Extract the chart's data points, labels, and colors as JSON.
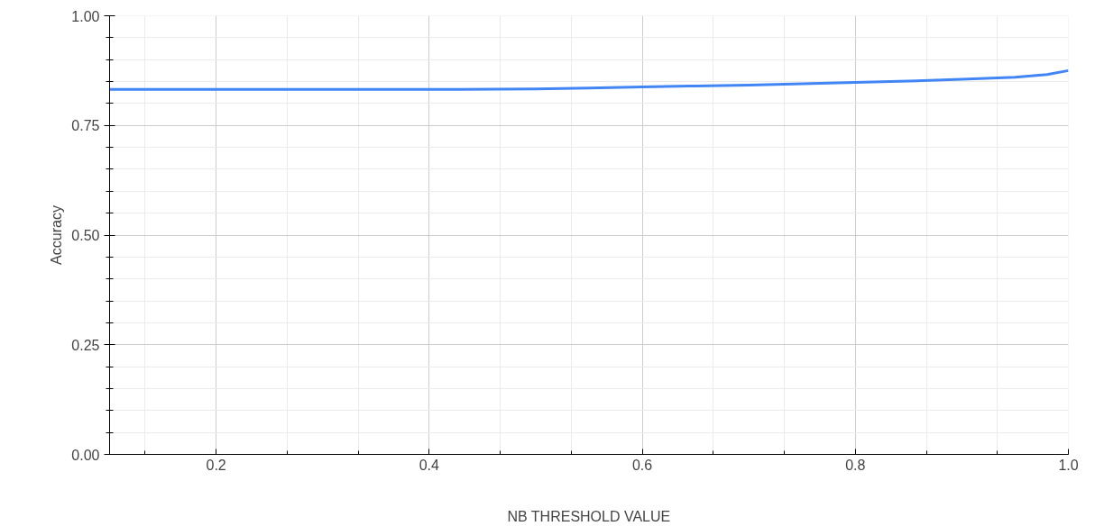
{
  "chart_data": {
    "type": "line",
    "xlabel": "NB THRESHOLD VALUE",
    "ylabel": "Accuracy",
    "x": [
      0.1,
      0.2,
      0.3,
      0.4,
      0.5,
      0.55,
      0.6,
      0.65,
      0.7,
      0.75,
      0.8,
      0.85,
      0.9,
      0.95,
      0.98,
      1.0
    ],
    "series": [
      {
        "color": "#4285f4",
        "values": [
          0.832,
          0.832,
          0.832,
          0.832,
          0.833,
          0.835,
          0.838,
          0.84,
          0.842,
          0.845,
          0.848,
          0.851,
          0.855,
          0.86,
          0.866,
          0.875
        ]
      }
    ],
    "xlim": [
      0.1,
      1.0
    ],
    "ylim": [
      0,
      1
    ],
    "xticks": [
      0.2,
      0.4,
      0.6,
      0.8,
      {
        "value": 1.0,
        "label": "1.0"
      }
    ],
    "yticks": [
      {
        "value": 0,
        "label": "0.00"
      },
      {
        "value": 0.25,
        "label": "0.25"
      },
      {
        "value": 0.5,
        "label": "0.50"
      },
      {
        "value": 0.75,
        "label": "0.75"
      },
      {
        "value": 1,
        "label": "1.00"
      }
    ],
    "grid": true,
    "marker": "none",
    "line_style": "solid"
  }
}
